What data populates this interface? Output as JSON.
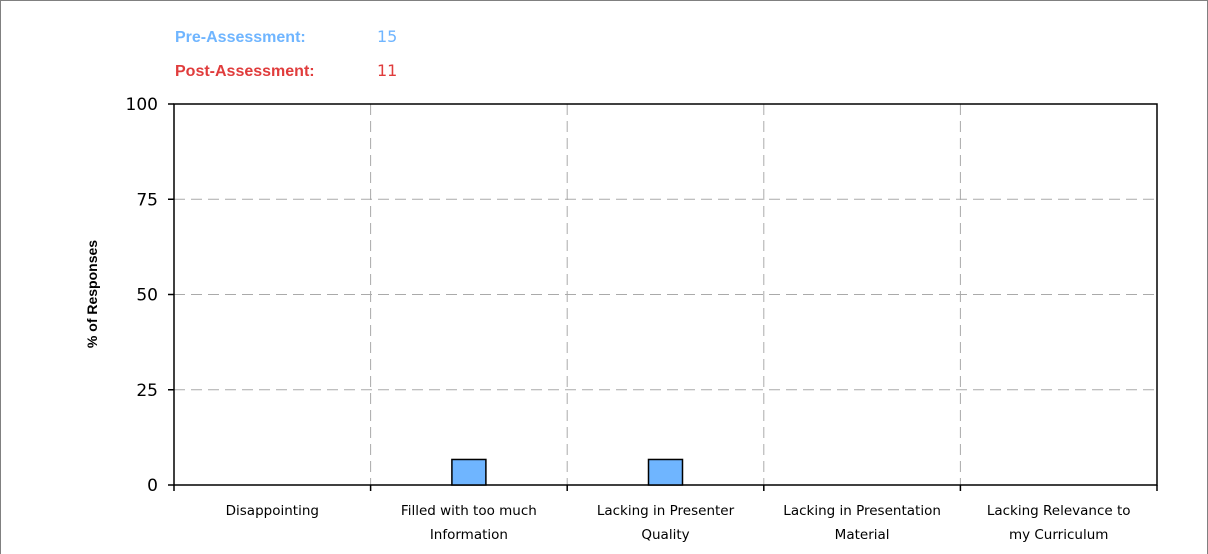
{
  "legend": {
    "pre": {
      "label": "Pre-Assessment:",
      "count": "15",
      "color": "#6fb5ff"
    },
    "post": {
      "label": "Post-Assessment:",
      "count": "11",
      "color": "#e03c3c"
    }
  },
  "chart_data": {
    "type": "bar",
    "ylabel": "% of Responses",
    "xlabel": "",
    "ylim": [
      0,
      100
    ],
    "yticks": [
      0,
      25,
      50,
      75,
      100
    ],
    "grid": true,
    "categories": [
      [
        "Disappointing"
      ],
      [
        "Filled with too much",
        "Information"
      ],
      [
        "Lacking in Presenter",
        "Quality"
      ],
      [
        "Lacking in Presentation",
        "Material"
      ],
      [
        "Lacking Relevance to",
        "my Curriculum"
      ]
    ],
    "series": [
      {
        "name": "Pre-Assessment",
        "color": "#6fb5ff",
        "values": [
          0,
          6.7,
          6.7,
          0,
          0
        ]
      }
    ]
  }
}
